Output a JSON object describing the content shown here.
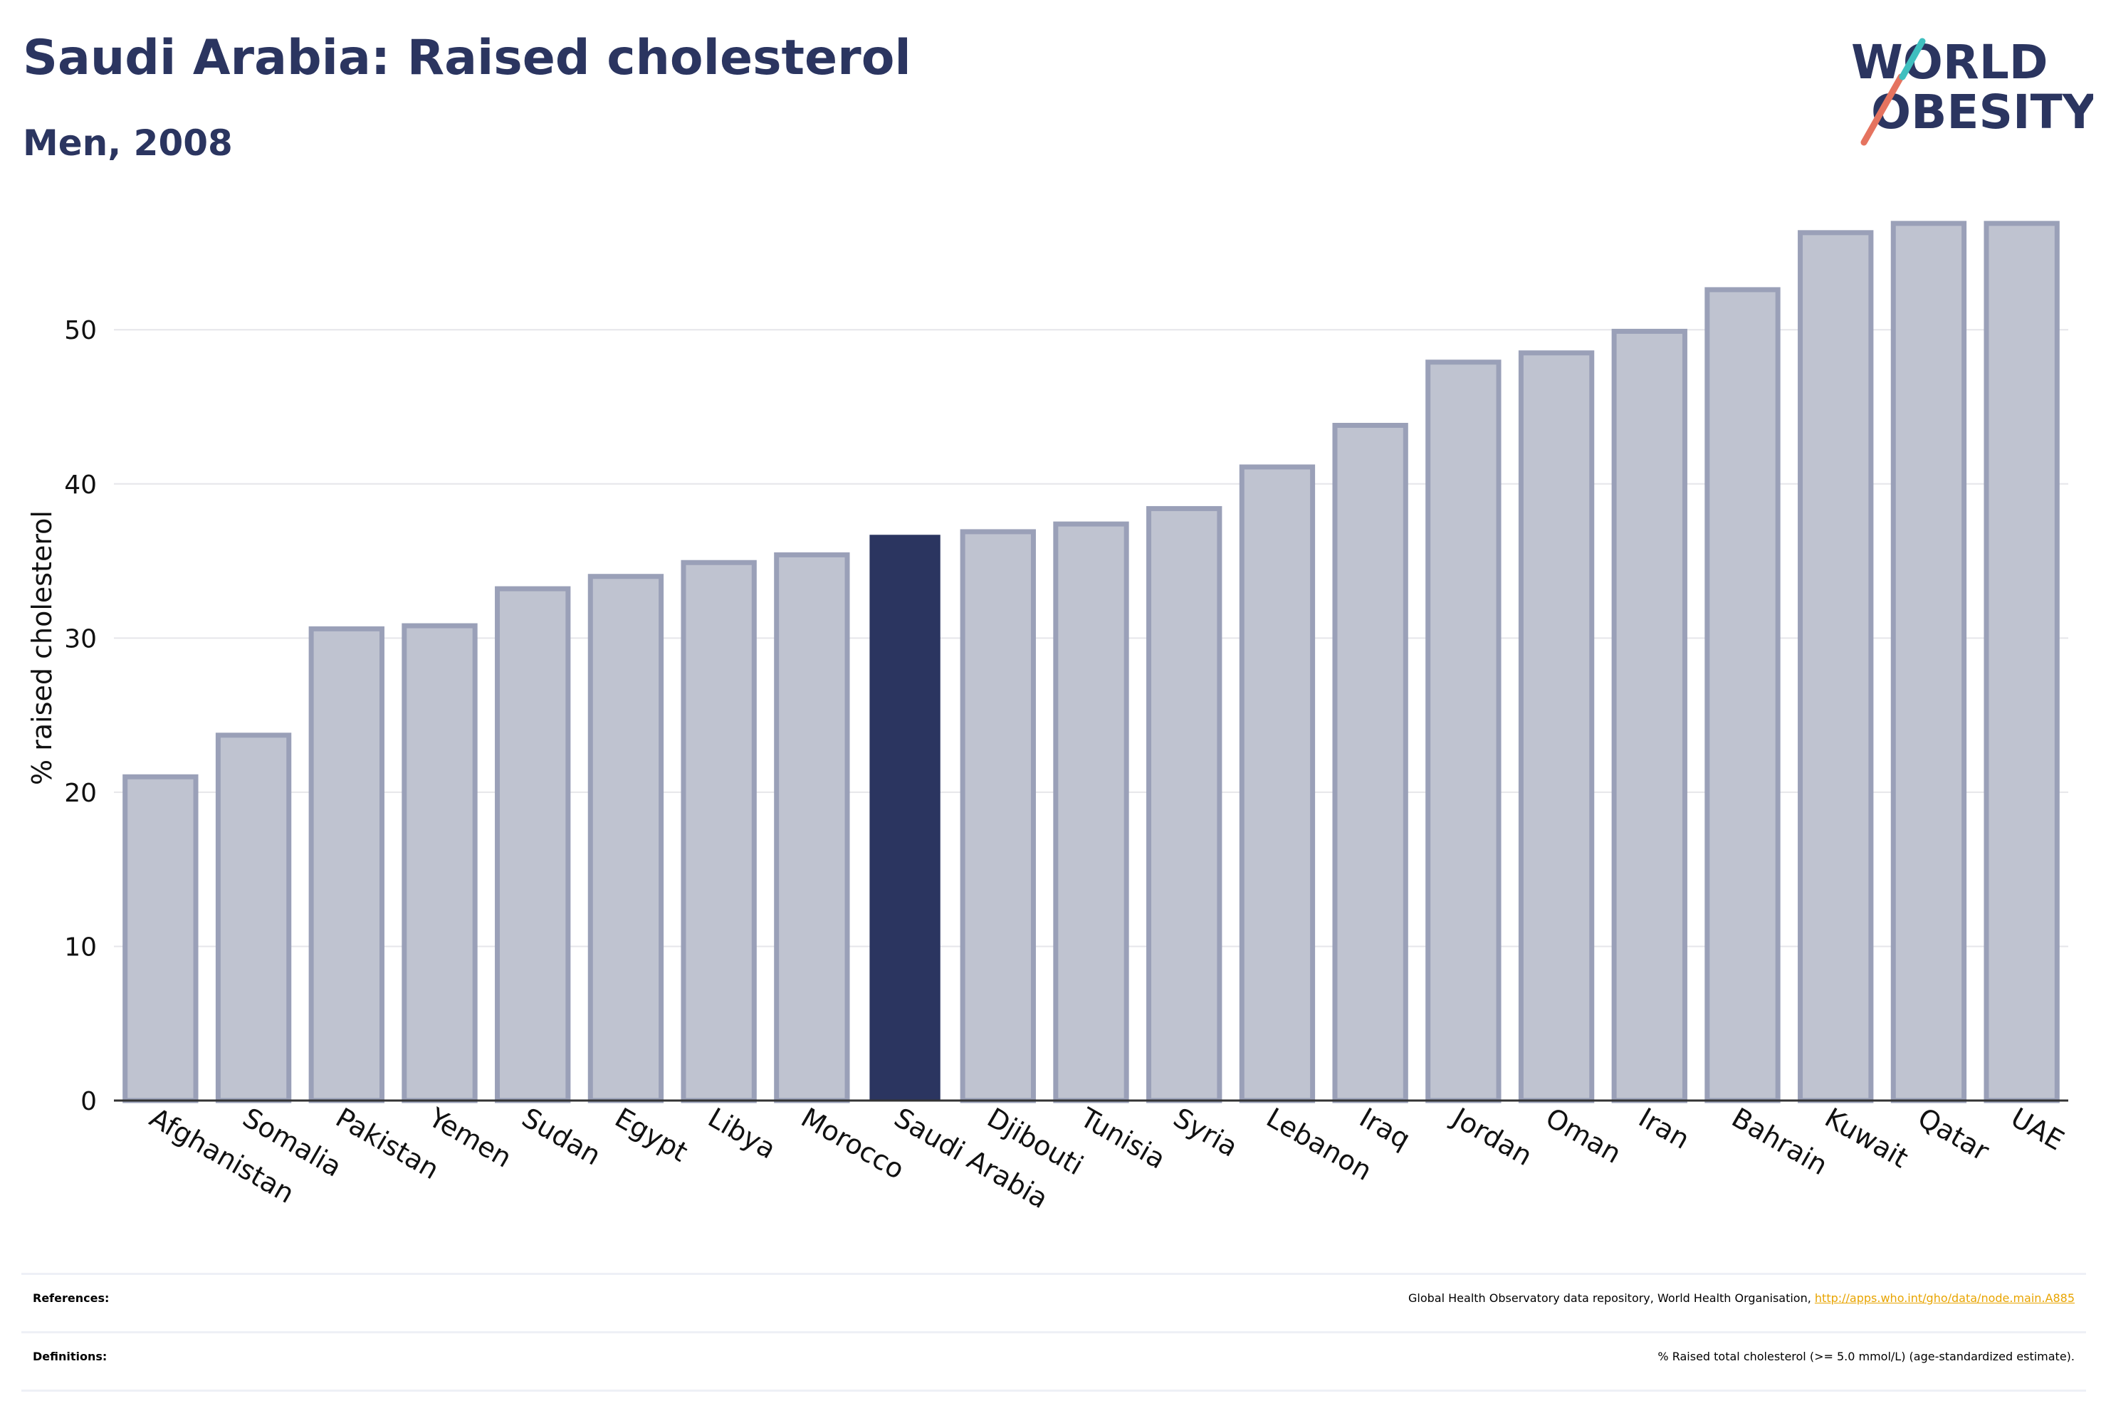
{
  "title": "Saudi Arabia: Raised cholesterol",
  "subtitle": "Men, 2008",
  "logo": {
    "line1": "WORLD",
    "line2": "OBESITY",
    "accent_colors": [
      "#e5735f",
      "#3fbfbf"
    ]
  },
  "colors": {
    "brand": "#2b3560",
    "bar_fill": "#bfc3d0",
    "bar_stroke": "#9aa0b8",
    "highlight": "#2b3560",
    "grid": "#e6e6ea",
    "link": "#e8a400"
  },
  "chart_data": {
    "type": "bar",
    "ylabel": "% raised cholesterol",
    "xlabel": "",
    "ylim": [
      0,
      58
    ],
    "yticks": [
      0,
      10,
      20,
      30,
      40,
      50
    ],
    "grid": true,
    "highlight_category": "Saudi Arabia",
    "categories": [
      "Afghanistan",
      "Somalia",
      "Pakistan",
      "Yemen",
      "Sudan",
      "Egypt",
      "Libya",
      "Morocco",
      "Saudi Arabia",
      "Djibouti",
      "Tunisia",
      "Syria",
      "Lebanon",
      "Iraq",
      "Jordan",
      "Oman",
      "Iran",
      "Bahrain",
      "Kuwait",
      "Qatar",
      "UAE"
    ],
    "values": [
      21.0,
      23.7,
      30.6,
      30.8,
      33.2,
      34.0,
      34.9,
      35.4,
      36.7,
      36.9,
      37.4,
      38.4,
      41.1,
      43.8,
      47.9,
      48.5,
      49.9,
      52.6,
      56.3,
      56.9,
      56.9
    ]
  },
  "footer": {
    "references_label": "References:",
    "references_text": "Global Health Observatory data repository, World Health Organisation, ",
    "references_link": "http://apps.who.int/gho/data/node.main.A885",
    "definitions_label": "Definitions:",
    "definitions_text": "% Raised total cholesterol (>= 5.0 mmol/L) (age-standardized estimate)."
  }
}
